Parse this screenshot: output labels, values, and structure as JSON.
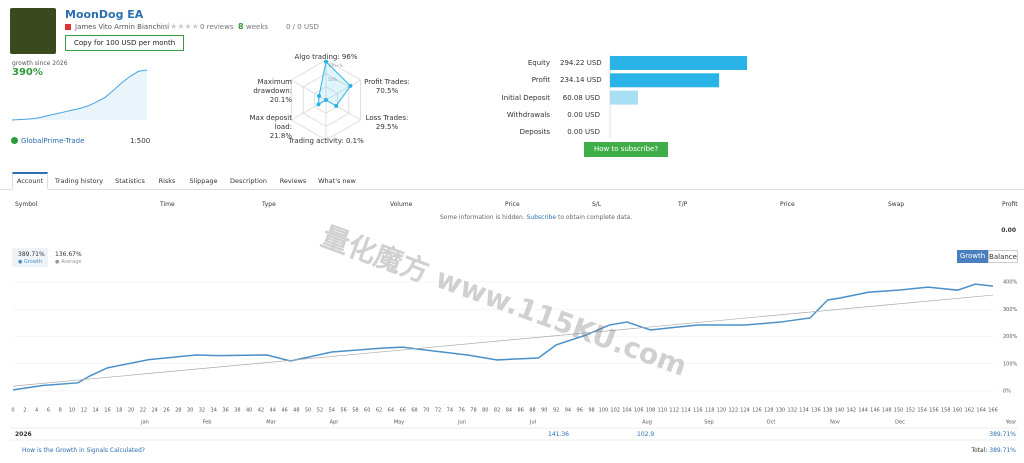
{
  "header": {
    "title": "MoonDog EA",
    "author": "James Vito Armin Bianchini",
    "reviews": "0 reviews",
    "weeks_count": "8",
    "weeks": "weeks",
    "subscribers": "0 / 0 USD",
    "copy_button": "Copy for 100 USD per month"
  },
  "summary": {
    "growth_label": "growth since 2026",
    "growth": "390%",
    "mini_chart": [
      0,
      4,
      8,
      15,
      30,
      45,
      60,
      75,
      90,
      110,
      140,
      175,
      230,
      290,
      340,
      380,
      390
    ],
    "broker": "GlobalPrime-Trade",
    "leverage": "1:500"
  },
  "radar": {
    "axes": [
      {
        "label": "Algo trading: 96%",
        "value": 96
      },
      {
        "label": "Profit Trades:\n70.5%",
        "value": 70.5
      },
      {
        "label": "Loss Trades: 29.5%",
        "value": 29.5
      },
      {
        "label": "Trading activity: 0.1%",
        "value": 0.1
      },
      {
        "label": "Max deposit load:\n21.8%",
        "value": 21.8
      },
      {
        "label": "Maximum\ndrawdown: 20.1%",
        "value": 20.1
      }
    ],
    "scale_labels": [
      "100+%",
      "50%"
    ]
  },
  "balance": {
    "rows": [
      {
        "label": "Equity",
        "value": 294.22,
        "value_label": "294.22 USD",
        "color": "#29b3e6"
      },
      {
        "label": "Profit",
        "value": 234.14,
        "value_label": "234.14 USD",
        "color": "#29b3e6"
      },
      {
        "label": "Initial Deposit",
        "value": 60.08,
        "value_label": "60.08 USD",
        "color": "#a9dff3"
      },
      {
        "label": "Withdrawals",
        "value": 0,
        "value_label": "0.00 USD",
        "color": "#a9dff3"
      },
      {
        "label": "Deposits",
        "value": 0,
        "value_label": "0.00 USD",
        "color": "#a9dff3"
      }
    ],
    "button": "How to subscribe?"
  },
  "tabs": [
    "Account",
    "Trading history",
    "Statistics",
    "Risks",
    "Slippage",
    "Description",
    "Reviews",
    "What's new"
  ],
  "table": {
    "columns": [
      "Symbol",
      "Time",
      "Type",
      "Volume",
      "Price",
      "S/L",
      "T/P",
      "Price",
      "Swap",
      "Profit"
    ],
    "notice": "Some information is hidden.",
    "subscribe": "Subscribe",
    "notice_end": "to obtain complete data.",
    "profit": "0.00"
  },
  "watermark": "量化魔方 www.115KU.com",
  "chart_data": {
    "type": "line",
    "growth_value": "389.71%",
    "growth_name": "Growth",
    "average_value": "136.67%",
    "average_name": "Average",
    "buttons": [
      "Growth",
      "Balance"
    ],
    "x": [
      0,
      5,
      11,
      13,
      16,
      23,
      31,
      35,
      43,
      47,
      54,
      63,
      66,
      70,
      77,
      82,
      89,
      92,
      97,
      101,
      104,
      108,
      111,
      116,
      124,
      130,
      135,
      138,
      140,
      145,
      150,
      155,
      160,
      163,
      166
    ],
    "series": [
      {
        "name": "Growth",
        "color": "#4a90c8",
        "values": [
          4,
          20,
          30,
          55,
          85,
          115,
          132,
          130,
          132,
          110,
          143,
          158,
          161,
          150,
          132,
          114,
          121,
          169,
          205,
          242,
          253,
          224,
          231,
          242,
          242,
          253,
          268,
          334,
          341,
          363,
          370,
          381,
          370,
          392,
          385
        ]
      },
      {
        "name": "Average",
        "color": "#aaaaaa",
        "x": [
          0,
          166
        ],
        "values": [
          18,
          352
        ]
      }
    ],
    "xlim": [
      0,
      166
    ],
    "xticks": [
      0,
      2,
      4,
      6,
      8,
      10,
      12,
      14,
      16,
      18,
      20,
      22,
      24,
      26,
      28,
      30,
      32,
      34,
      36,
      38,
      40,
      42,
      44,
      46,
      48,
      50,
      52,
      54,
      56,
      58,
      60,
      62,
      64,
      66,
      68,
      70,
      72,
      74,
      76,
      78,
      80,
      82,
      84,
      86,
      88,
      90,
      92,
      94,
      96,
      98,
      100,
      102,
      104,
      106,
      108,
      110,
      112,
      114,
      116,
      118,
      120,
      122,
      124,
      126,
      128,
      130,
      132,
      134,
      136,
      138,
      140,
      142,
      144,
      146,
      148,
      150,
      152,
      154,
      156,
      158,
      160,
      162,
      164,
      166
    ],
    "ylim": [
      0,
      400
    ],
    "yticks": [
      {
        "value": 0,
        "label": "0%"
      },
      {
        "value": 100,
        "label": "100%"
      },
      {
        "value": 200,
        "label": "200%"
      },
      {
        "value": 300,
        "label": "300%"
      },
      {
        "value": 400,
        "label": "400%"
      }
    ],
    "grid": true,
    "months": [
      "Jan",
      "Feb",
      "Mar",
      "Apr",
      "May",
      "Jun",
      "Jul",
      "Aug",
      "Sep",
      "Oct",
      "Nov",
      "Dec",
      "Year"
    ],
    "year": "2026",
    "monthly": [
      {
        "value": 141.36,
        "label": "141.36"
      },
      {
        "value": 102.9,
        "label": "102.9"
      }
    ],
    "year_total": "389.71%",
    "total_label": "Total:",
    "total": "389.71%",
    "help": "How is the Growth in Signals Calculated?"
  }
}
